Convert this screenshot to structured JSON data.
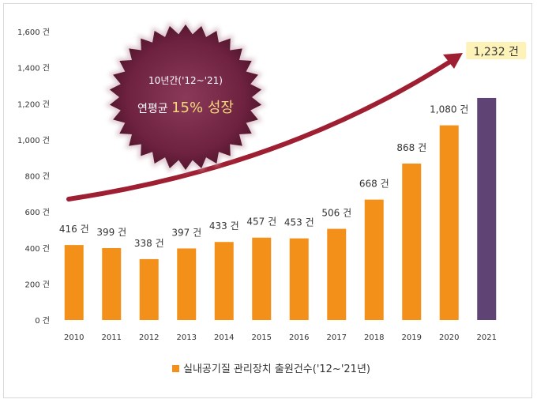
{
  "chart_data": {
    "type": "bar",
    "categories": [
      "2010",
      "2011",
      "2012",
      "2013",
      "2014",
      "2015",
      "2016",
      "2017",
      "2018",
      "2019",
      "2020",
      "2021"
    ],
    "values": [
      416,
      399,
      338,
      397,
      433,
      457,
      453,
      506,
      668,
      868,
      1080,
      1232
    ],
    "data_labels": [
      "416 건",
      "399 건",
      "338 건",
      "397 건",
      "433 건",
      "457 건",
      "453 건",
      "506 건",
      "668 건",
      "868 건",
      "1,080 건",
      "1,232 건"
    ],
    "ylim": [
      0,
      1600
    ],
    "yticks": [
      0,
      200,
      400,
      600,
      800,
      1000,
      1200,
      1400,
      1600
    ],
    "ytick_labels": [
      "0 건",
      "200 건",
      "400 건",
      "600 건",
      "800 건",
      "1,000 건",
      "1,200 건",
      "1,400 건",
      "1,600 건"
    ],
    "legend": {
      "label": "실내공기질 관리장치 출원건수('12~'21년)",
      "placement": "bottom"
    },
    "annotation": {
      "line1": "10년간('12~'21)",
      "line2_prefix": "연평균 ",
      "line2_emphasis": "15% 성장"
    },
    "grid": false,
    "colors": {
      "bar": "#f39019",
      "bar_highlight": "#5e4374",
      "arrow": "#9e1f32",
      "badge": "#6e2240",
      "highlight_label_bg": "#fdf2b8"
    }
  }
}
